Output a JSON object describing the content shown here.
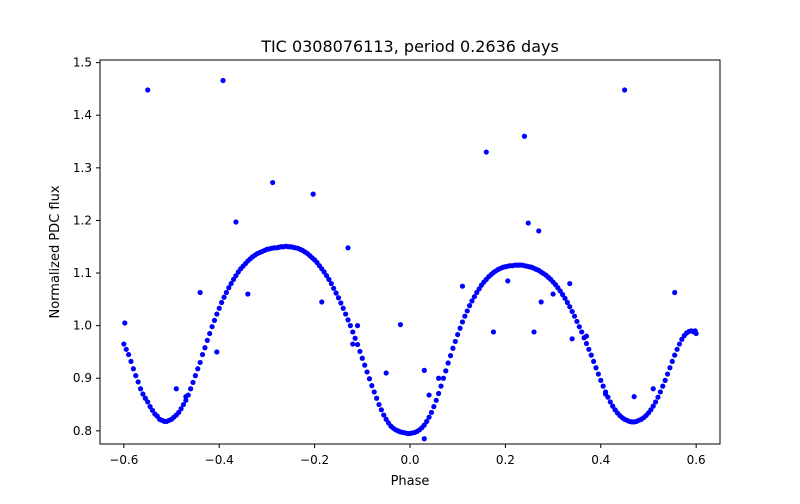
{
  "colors": {
    "marker": "#0000ff",
    "axes": "#000000",
    "background": "#ffffff"
  },
  "chart_data": {
    "type": "scatter",
    "title": "TIC 0308076113, period 0.2636 days",
    "xlabel": "Phase",
    "ylabel": "Normalized PDC flux",
    "xlim": [
      -0.65,
      0.65
    ],
    "ylim": [
      0.775,
      1.505
    ],
    "grid": false,
    "legend": "none",
    "x_ticks": [
      -0.6,
      -0.4,
      -0.2,
      0.0,
      0.2,
      0.4,
      0.6
    ],
    "x_tick_labels": [
      "−0.6",
      "−0.4",
      "−0.2",
      "0.0",
      "0.2",
      "0.4",
      "0.6"
    ],
    "y_ticks": [
      0.8,
      0.9,
      1.0,
      1.1,
      1.2,
      1.3,
      1.4,
      1.5
    ],
    "y_tick_labels": [
      "0.8",
      "0.9",
      "1.0",
      "1.1",
      "1.2",
      "1.3",
      "1.4",
      "1.5"
    ],
    "series": [
      {
        "color": "#0000ff",
        "points": [
          [
            -0.6,
            0.965
          ],
          [
            -0.595,
            0.955
          ],
          [
            -0.59,
            0.945
          ],
          [
            -0.585,
            0.932
          ],
          [
            -0.58,
            0.918
          ],
          [
            -0.575,
            0.905
          ],
          [
            -0.57,
            0.893
          ],
          [
            -0.565,
            0.88
          ],
          [
            -0.56,
            0.87
          ],
          [
            -0.555,
            0.862
          ],
          [
            -0.55,
            0.855
          ],
          [
            -0.545,
            0.846
          ],
          [
            -0.54,
            0.839
          ],
          [
            -0.535,
            0.832
          ],
          [
            -0.53,
            0.828
          ],
          [
            -0.525,
            0.822
          ],
          [
            -0.52,
            0.82
          ],
          [
            -0.515,
            0.818
          ],
          [
            -0.51,
            0.818
          ],
          [
            -0.505,
            0.82
          ],
          [
            -0.5,
            0.822
          ],
          [
            -0.495,
            0.826
          ],
          [
            -0.49,
            0.83
          ],
          [
            -0.485,
            0.835
          ],
          [
            -0.48,
            0.842
          ],
          [
            -0.475,
            0.85
          ],
          [
            -0.47,
            0.858
          ],
          [
            -0.465,
            0.868
          ],
          [
            -0.46,
            0.88
          ],
          [
            -0.455,
            0.892
          ],
          [
            -0.45,
            0.905
          ],
          [
            -0.445,
            0.918
          ],
          [
            -0.44,
            0.93
          ],
          [
            -0.435,
            0.945
          ],
          [
            -0.43,
            0.958
          ],
          [
            -0.425,
            0.972
          ],
          [
            -0.42,
            0.985
          ],
          [
            -0.415,
            0.998
          ],
          [
            -0.41,
            1.01
          ],
          [
            -0.405,
            1.022
          ],
          [
            -0.4,
            1.033
          ],
          [
            -0.395,
            1.044
          ],
          [
            -0.39,
            1.054
          ],
          [
            -0.385,
            1.063
          ],
          [
            -0.38,
            1.072
          ],
          [
            -0.375,
            1.08
          ],
          [
            -0.37,
            1.088
          ],
          [
            -0.365,
            1.095
          ],
          [
            -0.36,
            1.102
          ],
          [
            -0.355,
            1.108
          ],
          [
            -0.35,
            1.113
          ],
          [
            -0.345,
            1.118
          ],
          [
            -0.34,
            1.123
          ],
          [
            -0.335,
            1.127
          ],
          [
            -0.33,
            1.131
          ],
          [
            -0.325,
            1.134
          ],
          [
            -0.32,
            1.137
          ],
          [
            -0.315,
            1.139
          ],
          [
            -0.31,
            1.141
          ],
          [
            -0.305,
            1.143
          ],
          [
            -0.3,
            1.145
          ],
          [
            -0.295,
            1.146
          ],
          [
            -0.29,
            1.147
          ],
          [
            -0.285,
            1.148
          ],
          [
            -0.28,
            1.148
          ],
          [
            -0.275,
            1.149
          ],
          [
            -0.27,
            1.15
          ],
          [
            -0.265,
            1.15
          ],
          [
            -0.26,
            1.151
          ],
          [
            -0.255,
            1.15
          ],
          [
            -0.25,
            1.15
          ],
          [
            -0.245,
            1.149
          ],
          [
            -0.24,
            1.148
          ],
          [
            -0.235,
            1.147
          ],
          [
            -0.23,
            1.145
          ],
          [
            -0.225,
            1.143
          ],
          [
            -0.22,
            1.14
          ],
          [
            -0.215,
            1.137
          ],
          [
            -0.21,
            1.133
          ],
          [
            -0.205,
            1.129
          ],
          [
            -0.2,
            1.125
          ],
          [
            -0.195,
            1.12
          ],
          [
            -0.19,
            1.114
          ],
          [
            -0.185,
            1.108
          ],
          [
            -0.18,
            1.102
          ],
          [
            -0.175,
            1.095
          ],
          [
            -0.17,
            1.088
          ],
          [
            -0.165,
            1.08
          ],
          [
            -0.16,
            1.071
          ],
          [
            -0.155,
            1.062
          ],
          [
            -0.15,
            1.053
          ],
          [
            -0.145,
            1.043
          ],
          [
            -0.14,
            1.033
          ],
          [
            -0.135,
            1.022
          ],
          [
            -0.13,
            1.011
          ],
          [
            -0.125,
            1.0
          ],
          [
            -0.12,
            0.988
          ],
          [
            -0.115,
            0.976
          ],
          [
            -0.11,
            0.964
          ],
          [
            -0.105,
            0.951
          ],
          [
            -0.1,
            0.938
          ],
          [
            -0.095,
            0.925
          ],
          [
            -0.09,
            0.912
          ],
          [
            -0.085,
            0.899
          ],
          [
            -0.08,
            0.886
          ],
          [
            -0.075,
            0.874
          ],
          [
            -0.07,
            0.862
          ],
          [
            -0.065,
            0.85
          ],
          [
            -0.06,
            0.84
          ],
          [
            -0.055,
            0.83
          ],
          [
            -0.05,
            0.822
          ],
          [
            -0.045,
            0.815
          ],
          [
            -0.04,
            0.809
          ],
          [
            -0.035,
            0.805
          ],
          [
            -0.03,
            0.802
          ],
          [
            -0.025,
            0.8
          ],
          [
            -0.02,
            0.798
          ],
          [
            -0.015,
            0.797
          ],
          [
            -0.01,
            0.796
          ],
          [
            -0.005,
            0.795
          ],
          [
            0.0,
            0.795
          ],
          [
            0.005,
            0.796
          ],
          [
            0.01,
            0.797
          ],
          [
            0.015,
            0.799
          ],
          [
            0.02,
            0.802
          ],
          [
            0.025,
            0.806
          ],
          [
            0.03,
            0.811
          ],
          [
            0.035,
            0.818
          ],
          [
            0.04,
            0.826
          ],
          [
            0.045,
            0.835
          ],
          [
            0.05,
            0.846
          ],
          [
            0.055,
            0.858
          ],
          [
            0.06,
            0.871
          ],
          [
            0.065,
            0.885
          ],
          [
            0.07,
            0.9
          ],
          [
            0.075,
            0.914
          ],
          [
            0.08,
            0.929
          ],
          [
            0.085,
            0.943
          ],
          [
            0.09,
            0.957
          ],
          [
            0.095,
            0.97
          ],
          [
            0.1,
            0.983
          ],
          [
            0.105,
            0.995
          ],
          [
            0.11,
            1.007
          ],
          [
            0.115,
            1.018
          ],
          [
            0.12,
            1.028
          ],
          [
            0.125,
            1.038
          ],
          [
            0.13,
            1.047
          ],
          [
            0.135,
            1.055
          ],
          [
            0.14,
            1.063
          ],
          [
            0.145,
            1.07
          ],
          [
            0.15,
            1.077
          ],
          [
            0.155,
            1.083
          ],
          [
            0.16,
            1.088
          ],
          [
            0.165,
            1.093
          ],
          [
            0.17,
            1.097
          ],
          [
            0.175,
            1.101
          ],
          [
            0.18,
            1.104
          ],
          [
            0.185,
            1.107
          ],
          [
            0.19,
            1.109
          ],
          [
            0.195,
            1.111
          ],
          [
            0.2,
            1.112
          ],
          [
            0.205,
            1.113
          ],
          [
            0.21,
            1.114
          ],
          [
            0.215,
            1.114
          ],
          [
            0.22,
            1.115
          ],
          [
            0.225,
            1.115
          ],
          [
            0.23,
            1.115
          ],
          [
            0.235,
            1.115
          ],
          [
            0.24,
            1.114
          ],
          [
            0.245,
            1.113
          ],
          [
            0.25,
            1.112
          ],
          [
            0.255,
            1.111
          ],
          [
            0.26,
            1.109
          ],
          [
            0.265,
            1.107
          ],
          [
            0.27,
            1.105
          ],
          [
            0.275,
            1.102
          ],
          [
            0.28,
            1.099
          ],
          [
            0.285,
            1.096
          ],
          [
            0.29,
            1.092
          ],
          [
            0.295,
            1.088
          ],
          [
            0.3,
            1.083
          ],
          [
            0.305,
            1.078
          ],
          [
            0.31,
            1.072
          ],
          [
            0.315,
            1.066
          ],
          [
            0.32,
            1.059
          ],
          [
            0.325,
            1.052
          ],
          [
            0.33,
            1.044
          ],
          [
            0.335,
            1.036
          ],
          [
            0.34,
            1.027
          ],
          [
            0.345,
            1.018
          ],
          [
            0.35,
            1.008
          ],
          [
            0.355,
            0.998
          ],
          [
            0.36,
            0.988
          ],
          [
            0.365,
            0.977
          ],
          [
            0.37,
            0.966
          ],
          [
            0.375,
            0.955
          ],
          [
            0.38,
            0.944
          ],
          [
            0.385,
            0.932
          ],
          [
            0.39,
            0.92
          ],
          [
            0.395,
            0.908
          ],
          [
            0.4,
            0.896
          ],
          [
            0.405,
            0.885
          ],
          [
            0.41,
            0.874
          ],
          [
            0.415,
            0.864
          ],
          [
            0.42,
            0.855
          ],
          [
            0.425,
            0.847
          ],
          [
            0.43,
            0.84
          ],
          [
            0.435,
            0.834
          ],
          [
            0.44,
            0.829
          ],
          [
            0.445,
            0.825
          ],
          [
            0.45,
            0.822
          ],
          [
            0.455,
            0.82
          ],
          [
            0.46,
            0.818
          ],
          [
            0.465,
            0.817
          ],
          [
            0.47,
            0.817
          ],
          [
            0.475,
            0.818
          ],
          [
            0.48,
            0.82
          ],
          [
            0.485,
            0.822
          ],
          [
            0.49,
            0.825
          ],
          [
            0.495,
            0.829
          ],
          [
            0.5,
            0.834
          ],
          [
            0.505,
            0.84
          ],
          [
            0.51,
            0.847
          ],
          [
            0.515,
            0.855
          ],
          [
            0.52,
            0.864
          ],
          [
            0.525,
            0.874
          ],
          [
            0.53,
            0.885
          ],
          [
            0.535,
            0.896
          ],
          [
            0.54,
            0.908
          ],
          [
            0.545,
            0.92
          ],
          [
            0.55,
            0.932
          ],
          [
            0.555,
            0.944
          ],
          [
            0.56,
            0.955
          ],
          [
            0.565,
            0.965
          ],
          [
            0.57,
            0.974
          ],
          [
            0.575,
            0.981
          ],
          [
            0.58,
            0.986
          ],
          [
            0.585,
            0.989
          ],
          [
            0.59,
            0.99
          ],
          [
            0.595,
            0.988
          ],
          [
            0.6,
            0.985
          ],
          [
            -0.598,
            1.005
          ],
          [
            -0.55,
            1.448
          ],
          [
            -0.392,
            1.466
          ],
          [
            -0.365,
            1.197
          ],
          [
            -0.288,
            1.272
          ],
          [
            -0.203,
            1.25
          ],
          [
            -0.13,
            1.148
          ],
          [
            -0.44,
            1.063
          ],
          [
            -0.34,
            1.06
          ],
          [
            -0.185,
            1.045
          ],
          [
            -0.405,
            0.95
          ],
          [
            -0.47,
            0.865
          ],
          [
            -0.49,
            0.88
          ],
          [
            -0.12,
            0.965
          ],
          [
            -0.05,
            0.91
          ],
          [
            -0.02,
            1.002
          ],
          [
            0.03,
            0.915
          ],
          [
            0.04,
            0.868
          ],
          [
            0.03,
            0.785
          ],
          [
            0.16,
            1.33
          ],
          [
            0.24,
            1.36
          ],
          [
            0.248,
            1.195
          ],
          [
            0.27,
            1.18
          ],
          [
            0.205,
            1.085
          ],
          [
            0.175,
            0.988
          ],
          [
            0.26,
            0.988
          ],
          [
            0.275,
            1.045
          ],
          [
            0.3,
            1.06
          ],
          [
            0.335,
            1.08
          ],
          [
            0.11,
            1.075
          ],
          [
            0.45,
            1.448
          ],
          [
            0.47,
            0.865
          ],
          [
            0.51,
            0.88
          ],
          [
            0.555,
            1.063
          ],
          [
            0.41,
            0.87
          ],
          [
            0.34,
            0.975
          ],
          [
            0.37,
            0.98
          ],
          [
            0.598,
            0.99
          ],
          [
            -0.11,
            1.0
          ],
          [
            0.06,
            0.9
          ]
        ]
      }
    ]
  }
}
